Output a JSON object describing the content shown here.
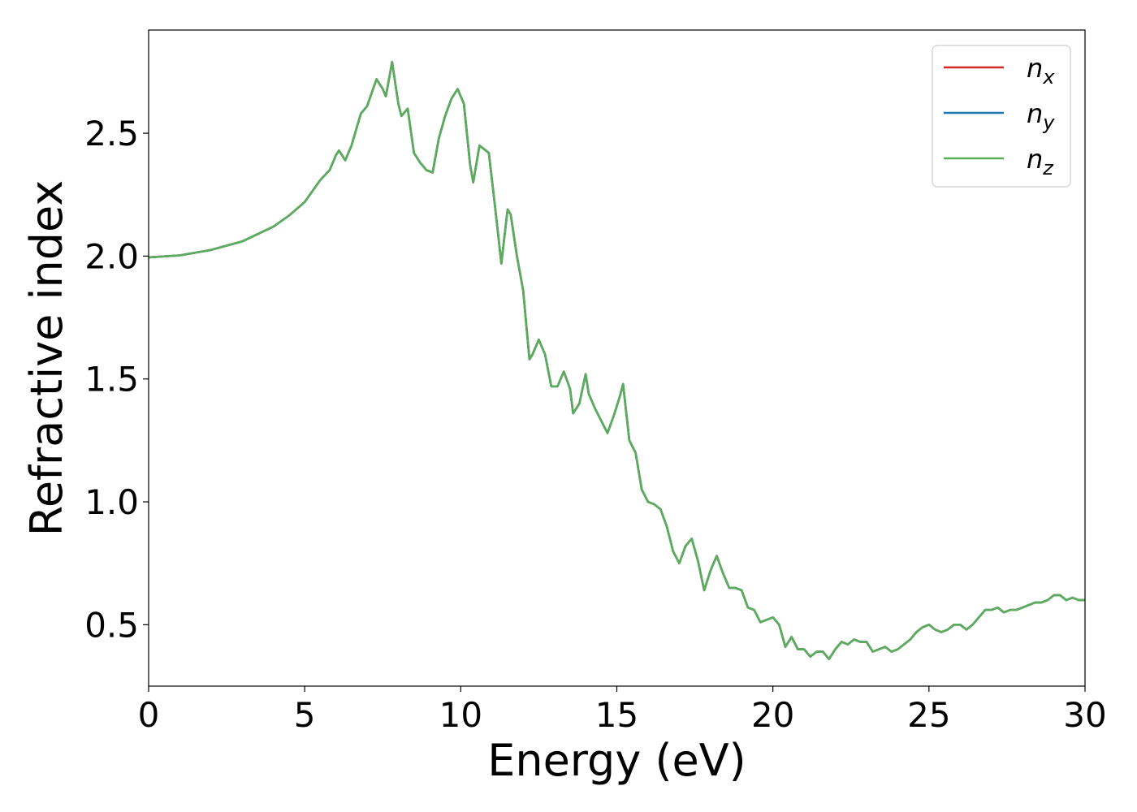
{
  "chart_data": {
    "type": "line",
    "xlabel": "Energy (eV)",
    "ylabel": "Refractive index",
    "xlim": [
      0,
      30
    ],
    "ylim": [
      0.25,
      2.92
    ],
    "xticks": [
      0,
      5,
      10,
      15,
      20,
      25,
      30
    ],
    "xtick_labels": [
      "0",
      "5",
      "10",
      "15",
      "20",
      "25",
      "30"
    ],
    "yticks": [
      0.5,
      1.0,
      1.5,
      2.0,
      2.5
    ],
    "ytick_labels": [
      "0.5",
      "1.0",
      "1.5",
      "2.0",
      "2.5"
    ],
    "grid": false,
    "legend_position": "top-right",
    "x": [
      0,
      1,
      2,
      3,
      4,
      4.5,
      5,
      5.5,
      5.8,
      6.0,
      6.1,
      6.3,
      6.5,
      6.8,
      7.0,
      7.3,
      7.5,
      7.6,
      7.8,
      8.0,
      8.1,
      8.3,
      8.5,
      8.7,
      8.9,
      9.1,
      9.3,
      9.5,
      9.7,
      9.9,
      10.1,
      10.3,
      10.4,
      10.6,
      10.9,
      11.1,
      11.3,
      11.5,
      11.6,
      11.8,
      12.0,
      12.2,
      12.3,
      12.5,
      12.7,
      12.9,
      13.1,
      13.3,
      13.5,
      13.6,
      13.8,
      14.0,
      14.1,
      14.3,
      14.5,
      14.7,
      14.9,
      15.1,
      15.2,
      15.4,
      15.6,
      15.8,
      16.0,
      16.2,
      16.4,
      16.6,
      16.8,
      17.0,
      17.2,
      17.4,
      17.6,
      17.8,
      18.0,
      18.2,
      18.4,
      18.6,
      18.8,
      19.0,
      19.2,
      19.4,
      19.6,
      19.8,
      20.0,
      20.2,
      20.4,
      20.6,
      20.8,
      21.0,
      21.2,
      21.4,
      21.6,
      21.8,
      22.0,
      22.2,
      22.4,
      22.6,
      22.8,
      23.0,
      23.2,
      23.4,
      23.6,
      23.8,
      24.0,
      24.2,
      24.4,
      24.6,
      24.8,
      25.0,
      25.2,
      25.4,
      25.6,
      25.8,
      26.0,
      26.2,
      26.4,
      26.6,
      26.8,
      27.0,
      27.2,
      27.4,
      27.6,
      27.8,
      28.0,
      28.2,
      28.4,
      28.6,
      28.8,
      29.0,
      29.2,
      29.4,
      29.6,
      29.8,
      30.0
    ],
    "series": [
      {
        "name": "n_x",
        "label": "n",
        "subscript": "x",
        "color": "#d62728",
        "values": [
          1.995,
          2.003,
          2.025,
          2.06,
          2.12,
          2.165,
          2.22,
          2.31,
          2.35,
          2.41,
          2.43,
          2.39,
          2.45,
          2.58,
          2.61,
          2.72,
          2.68,
          2.65,
          2.79,
          2.62,
          2.57,
          2.6,
          2.42,
          2.38,
          2.35,
          2.34,
          2.48,
          2.57,
          2.64,
          2.68,
          2.62,
          2.37,
          2.3,
          2.45,
          2.42,
          2.2,
          1.97,
          2.19,
          2.17,
          2.0,
          1.86,
          1.58,
          1.6,
          1.66,
          1.6,
          1.47,
          1.47,
          1.53,
          1.46,
          1.36,
          1.4,
          1.52,
          1.44,
          1.38,
          1.33,
          1.28,
          1.35,
          1.43,
          1.48,
          1.25,
          1.2,
          1.05,
          1.0,
          0.99,
          0.97,
          0.9,
          0.8,
          0.75,
          0.82,
          0.85,
          0.76,
          0.64,
          0.72,
          0.78,
          0.71,
          0.65,
          0.65,
          0.64,
          0.57,
          0.56,
          0.51,
          0.52,
          0.53,
          0.5,
          0.41,
          0.45,
          0.4,
          0.4,
          0.37,
          0.39,
          0.39,
          0.36,
          0.4,
          0.43,
          0.42,
          0.44,
          0.43,
          0.43,
          0.39,
          0.4,
          0.41,
          0.39,
          0.4,
          0.42,
          0.44,
          0.47,
          0.49,
          0.5,
          0.48,
          0.47,
          0.48,
          0.5,
          0.5,
          0.48,
          0.5,
          0.53,
          0.56,
          0.56,
          0.57,
          0.55,
          0.56,
          0.56,
          0.57,
          0.58,
          0.59,
          0.59,
          0.6,
          0.62,
          0.62,
          0.6,
          0.61,
          0.6,
          0.6
        ]
      },
      {
        "name": "n_y",
        "label": "n",
        "subscript": "y",
        "color": "#1f77b4",
        "values": [
          1.995,
          2.003,
          2.025,
          2.06,
          2.12,
          2.165,
          2.22,
          2.31,
          2.35,
          2.41,
          2.43,
          2.39,
          2.45,
          2.58,
          2.61,
          2.72,
          2.68,
          2.65,
          2.79,
          2.62,
          2.57,
          2.6,
          2.42,
          2.38,
          2.35,
          2.34,
          2.48,
          2.57,
          2.64,
          2.68,
          2.62,
          2.37,
          2.3,
          2.45,
          2.42,
          2.2,
          1.97,
          2.19,
          2.17,
          2.0,
          1.86,
          1.58,
          1.6,
          1.66,
          1.6,
          1.47,
          1.47,
          1.53,
          1.46,
          1.36,
          1.4,
          1.52,
          1.44,
          1.38,
          1.33,
          1.28,
          1.35,
          1.43,
          1.48,
          1.25,
          1.2,
          1.05,
          1.0,
          0.99,
          0.97,
          0.9,
          0.8,
          0.75,
          0.82,
          0.85,
          0.76,
          0.64,
          0.72,
          0.78,
          0.71,
          0.65,
          0.65,
          0.64,
          0.57,
          0.56,
          0.51,
          0.52,
          0.53,
          0.5,
          0.41,
          0.45,
          0.4,
          0.4,
          0.37,
          0.39,
          0.39,
          0.36,
          0.4,
          0.43,
          0.42,
          0.44,
          0.43,
          0.43,
          0.39,
          0.4,
          0.41,
          0.39,
          0.4,
          0.42,
          0.44,
          0.47,
          0.49,
          0.5,
          0.48,
          0.47,
          0.48,
          0.5,
          0.5,
          0.48,
          0.5,
          0.53,
          0.56,
          0.56,
          0.57,
          0.55,
          0.56,
          0.56,
          0.57,
          0.58,
          0.59,
          0.59,
          0.6,
          0.62,
          0.62,
          0.6,
          0.61,
          0.6,
          0.6
        ]
      },
      {
        "name": "n_z",
        "label": "n",
        "subscript": "z",
        "color": "#5aad5a",
        "values": [
          1.995,
          2.003,
          2.025,
          2.06,
          2.12,
          2.165,
          2.22,
          2.31,
          2.35,
          2.41,
          2.43,
          2.39,
          2.45,
          2.58,
          2.61,
          2.72,
          2.68,
          2.65,
          2.79,
          2.62,
          2.57,
          2.6,
          2.42,
          2.38,
          2.35,
          2.34,
          2.48,
          2.57,
          2.64,
          2.68,
          2.62,
          2.37,
          2.3,
          2.45,
          2.42,
          2.2,
          1.97,
          2.19,
          2.17,
          2.0,
          1.86,
          1.58,
          1.6,
          1.66,
          1.6,
          1.47,
          1.47,
          1.53,
          1.46,
          1.36,
          1.4,
          1.52,
          1.44,
          1.38,
          1.33,
          1.28,
          1.35,
          1.43,
          1.48,
          1.25,
          1.2,
          1.05,
          1.0,
          0.99,
          0.97,
          0.9,
          0.8,
          0.75,
          0.82,
          0.85,
          0.76,
          0.64,
          0.72,
          0.78,
          0.71,
          0.65,
          0.65,
          0.64,
          0.57,
          0.56,
          0.51,
          0.52,
          0.53,
          0.5,
          0.41,
          0.45,
          0.4,
          0.4,
          0.37,
          0.39,
          0.39,
          0.36,
          0.4,
          0.43,
          0.42,
          0.44,
          0.43,
          0.43,
          0.39,
          0.4,
          0.41,
          0.39,
          0.4,
          0.42,
          0.44,
          0.47,
          0.49,
          0.5,
          0.48,
          0.47,
          0.48,
          0.5,
          0.5,
          0.48,
          0.5,
          0.53,
          0.56,
          0.56,
          0.57,
          0.55,
          0.56,
          0.56,
          0.57,
          0.58,
          0.59,
          0.59,
          0.6,
          0.62,
          0.62,
          0.6,
          0.61,
          0.6,
          0.6
        ]
      }
    ]
  }
}
